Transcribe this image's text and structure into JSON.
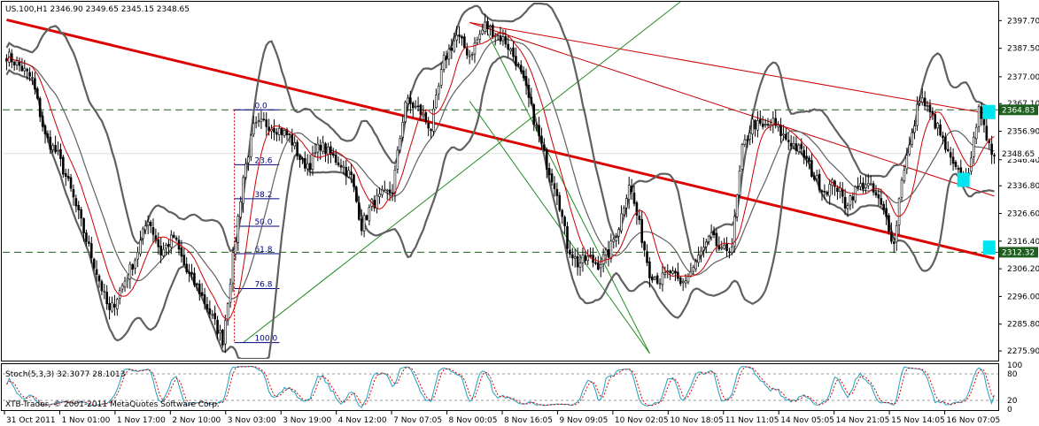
{
  "window": {
    "symbol_line": "US.100,H1  2346.90 2349.65 2345.15 2348.65",
    "copyright": "XTB-Trader, © 2001-2011 MetaQuotes Software Corp."
  },
  "colors": {
    "background": "#ffffff",
    "candle": "#000000",
    "bollinger": "#606060",
    "ma": "#cc0000",
    "trend_main": "#dd0000",
    "trend_thin": "#cc0000",
    "green_line": "#228b22",
    "dashed_level": "#1e5e1e",
    "fib": "#000080",
    "stoch_main": "#20a0c0",
    "stoch_signal": "#dd0000",
    "marker": "#00e5ee",
    "current_price_tag": "#000000",
    "level_tag": "#1e5e1e"
  },
  "chart_data": [
    {
      "type": "candlestick",
      "title": "US.100,H1  2346.90 2349.65 2345.15 2348.65",
      "ylim": [
        2273,
        2404
      ],
      "y_ticks": [
        "2397.70",
        "2387.50",
        "2377.00",
        "2367.10",
        "2356.90",
        "2346.40",
        "2336.80",
        "2326.60",
        "2316.40",
        "2306.20",
        "2296.00",
        "2285.80",
        "2275.90"
      ],
      "x_ticks": [
        "31 Oct 2011",
        "1 Nov 01:00",
        "1 Nov 17:00",
        "2 Nov 10:00",
        "3 Nov 03:00",
        "3 Nov 19:00",
        "4 Nov 12:00",
        "7 Nov 07:05",
        "8 Nov 00:05",
        "8 Nov 16:05",
        "9 Nov 09:05",
        "10 Nov 02:05",
        "10 Nov 18:05",
        "11 Nov 11:05",
        "14 Nov 05:05",
        "14 Nov 21:05",
        "15 Nov 14:05",
        "16 Nov 07:05"
      ],
      "anchors": [
        [
          0,
          2385
        ],
        [
          5,
          2381
        ],
        [
          10,
          2376
        ],
        [
          15,
          2355
        ],
        [
          20,
          2348
        ],
        [
          25,
          2335
        ],
        [
          30,
          2320
        ],
        [
          35,
          2305
        ],
        [
          40,
          2290
        ],
        [
          45,
          2300
        ],
        [
          50,
          2310
        ],
        [
          55,
          2325
        ],
        [
          60,
          2312
        ],
        [
          65,
          2318
        ],
        [
          70,
          2305
        ],
        [
          75,
          2298
        ],
        [
          80,
          2288
        ],
        [
          84,
          2280
        ],
        [
          88,
          2310
        ],
        [
          92,
          2340
        ],
        [
          96,
          2358
        ],
        [
          100,
          2360
        ],
        [
          105,
          2358
        ],
        [
          110,
          2355
        ],
        [
          115,
          2345
        ],
        [
          118,
          2345
        ],
        [
          122,
          2352
        ],
        [
          126,
          2348
        ],
        [
          130,
          2345
        ],
        [
          134,
          2340
        ],
        [
          138,
          2322
        ],
        [
          142,
          2330
        ],
        [
          146,
          2333
        ],
        [
          150,
          2335
        ],
        [
          155,
          2368
        ],
        [
          160,
          2365
        ],
        [
          165,
          2358
        ],
        [
          170,
          2383
        ],
        [
          175,
          2392
        ],
        [
          180,
          2385
        ],
        [
          186,
          2396
        ],
        [
          190,
          2393
        ],
        [
          194,
          2390
        ],
        [
          198,
          2383
        ],
        [
          202,
          2372
        ],
        [
          206,
          2358
        ],
        [
          210,
          2345
        ],
        [
          214,
          2335
        ],
        [
          218,
          2315
        ],
        [
          222,
          2308
        ],
        [
          226,
          2310
        ],
        [
          230,
          2308
        ],
        [
          234,
          2312
        ],
        [
          238,
          2322
        ],
        [
          242,
          2338
        ],
        [
          246,
          2322
        ],
        [
          250,
          2305
        ],
        [
          254,
          2302
        ],
        [
          258,
          2305
        ],
        [
          262,
          2300
        ],
        [
          266,
          2305
        ],
        [
          270,
          2312
        ],
        [
          274,
          2318
        ],
        [
          278,
          2312
        ],
        [
          282,
          2315
        ],
        [
          286,
          2350
        ],
        [
          290,
          2360
        ],
        [
          294,
          2358
        ],
        [
          298,
          2360
        ],
        [
          302,
          2355
        ],
        [
          306,
          2352
        ],
        [
          310,
          2348
        ],
        [
          314,
          2340
        ],
        [
          318,
          2335
        ],
        [
          322,
          2338
        ],
        [
          326,
          2330
        ],
        [
          330,
          2335
        ],
        [
          334,
          2338
        ],
        [
          338,
          2333
        ],
        [
          342,
          2325
        ],
        [
          345,
          2315
        ],
        [
          348,
          2340
        ],
        [
          352,
          2355
        ],
        [
          355,
          2370
        ],
        [
          358,
          2365
        ],
        [
          362,
          2358
        ],
        [
          366,
          2348
        ],
        [
          369,
          2342
        ],
        [
          372,
          2340
        ],
        [
          375,
          2345
        ],
        [
          378,
          2368
        ],
        [
          381,
          2352
        ],
        [
          384,
          2348
        ]
      ],
      "ma_period": 10,
      "bands": {
        "period": 20,
        "deviations": 2
      },
      "levels": [
        {
          "price": 2364.8,
          "label": "2364.83"
        },
        {
          "price": 2312.3,
          "label": "2312.32"
        }
      ],
      "current_price": {
        "price": 2348.65,
        "label": "2348.65"
      },
      "trendlines": [
        {
          "kind": "main",
          "from": [
            0,
            2398
          ],
          "to": [
            384,
            2310
          ]
        },
        {
          "kind": "thin",
          "from": [
            180,
            2397
          ],
          "to": [
            384,
            2363
          ]
        },
        {
          "kind": "thin",
          "from": [
            180,
            2397
          ],
          "to": [
            384,
            2333
          ]
        },
        {
          "kind": "green",
          "from": [
            92,
            2279
          ],
          "to": [
            280,
            2418
          ]
        },
        {
          "kind": "green",
          "from": [
            186,
            2395
          ],
          "to": [
            250,
            2275
          ]
        },
        {
          "kind": "green",
          "from": [
            180,
            2368
          ],
          "to": [
            250,
            2275
          ]
        }
      ],
      "fibonacci": {
        "from_index": 92,
        "to_index": 104,
        "high": 2364.8,
        "low": 2279.0,
        "labels": [
          "0.0",
          "23.6",
          "38.2",
          "50.0",
          "61.8",
          "76.8",
          "100.0"
        ],
        "ratios": [
          0,
          0.236,
          0.382,
          0.5,
          0.618,
          0.768,
          1.0
        ]
      },
      "markers": [
        {
          "index": 372,
          "price": 2339
        },
        {
          "index": 382,
          "price": 2364
        },
        {
          "index": 382,
          "price": 2314
        }
      ]
    },
    {
      "type": "line",
      "title": "Stoch(5,3,3) 32.3077 28.1013",
      "ylim": [
        0,
        100
      ],
      "y_ticks": [
        "100",
        "80",
        "20",
        "0"
      ],
      "levels": [
        80,
        20
      ],
      "series": [
        {
          "name": "main",
          "value": 32.3077
        },
        {
          "name": "signal",
          "value": 28.1013
        }
      ]
    }
  ]
}
